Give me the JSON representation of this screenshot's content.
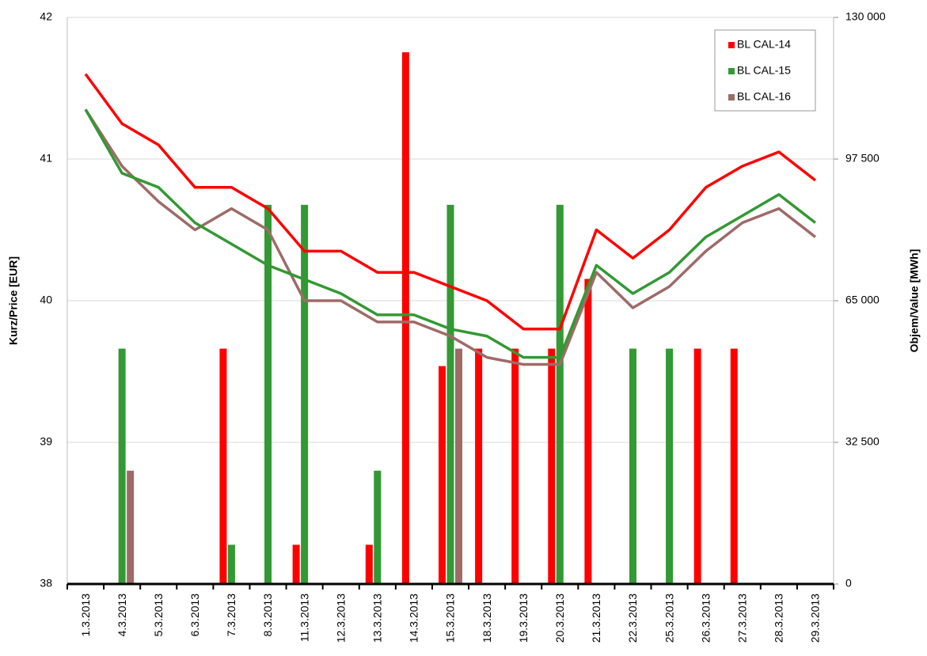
{
  "chart_data": {
    "type": "combo",
    "y_label": "Kurz/Price [EUR]",
    "y2_label": "Objem/Value [MWh]",
    "categories": [
      "1.3.2013",
      "4.3.2013",
      "5.3.2013",
      "6.3.2013",
      "7.3.2013",
      "8.3.2013",
      "11.3.2013",
      "12.3.2013",
      "13.3.2013",
      "14.3.2013",
      "15.3.2013",
      "18.3.2013",
      "19.3.2013",
      "20.3.2013",
      "21.3.2013",
      "22.3.2013",
      "25.3.2013",
      "26.3.2013",
      "27.3.2013",
      "28.3.2013",
      "29.3.2013"
    ],
    "ylim": [
      38,
      42
    ],
    "yticks": [
      38,
      39,
      40,
      41,
      42
    ],
    "y2lim": [
      0,
      130000
    ],
    "y2ticks": [
      0,
      {
        "value": 32500,
        "label": "32 500"
      },
      {
        "value": 65000,
        "label": "65 000"
      },
      {
        "value": 97500,
        "label": "97 500"
      },
      {
        "value": 130000,
        "label": "130 000"
      }
    ],
    "grid": true,
    "legend": "top-right",
    "series": [
      {
        "name": "BL CAL-14",
        "color": "#ff0000",
        "values": [
          41.6,
          41.25,
          41.1,
          40.8,
          40.8,
          40.65,
          40.35,
          40.35,
          40.2,
          40.2,
          40.1,
          40.0,
          39.8,
          39.8,
          40.5,
          40.3,
          40.5,
          40.8,
          40.95,
          41.05,
          40.85
        ],
        "volumes": [
          null,
          null,
          null,
          null,
          54000,
          null,
          9000,
          null,
          9000,
          122000,
          50000,
          54000,
          54000,
          54000,
          70000,
          null,
          null,
          54000,
          54000,
          null,
          null
        ]
      },
      {
        "name": "BL CAL-15",
        "color": "#339933",
        "values": [
          41.35,
          40.9,
          40.8,
          40.55,
          40.4,
          40.25,
          40.15,
          40.05,
          39.9,
          39.9,
          39.8,
          39.75,
          39.6,
          39.6,
          40.25,
          40.05,
          40.2,
          40.45,
          40.6,
          40.75,
          40.55
        ],
        "volumes": [
          null,
          54000,
          null,
          null,
          9000,
          87000,
          87000,
          null,
          26000,
          null,
          87000,
          null,
          null,
          87000,
          null,
          54000,
          54000,
          null,
          null,
          null,
          null
        ]
      },
      {
        "name": "BL CAL-16",
        "color": "#9e6b67",
        "values": [
          41.35,
          40.95,
          40.7,
          40.5,
          40.65,
          40.5,
          40.0,
          40.0,
          39.85,
          39.85,
          39.75,
          39.6,
          39.55,
          39.55,
          40.2,
          39.95,
          40.1,
          40.35,
          40.55,
          40.65,
          40.45
        ],
        "volumes": [
          null,
          26000,
          null,
          null,
          null,
          null,
          null,
          null,
          null,
          null,
          54000,
          null,
          null,
          null,
          null,
          null,
          null,
          null,
          null,
          null,
          null
        ]
      }
    ]
  }
}
